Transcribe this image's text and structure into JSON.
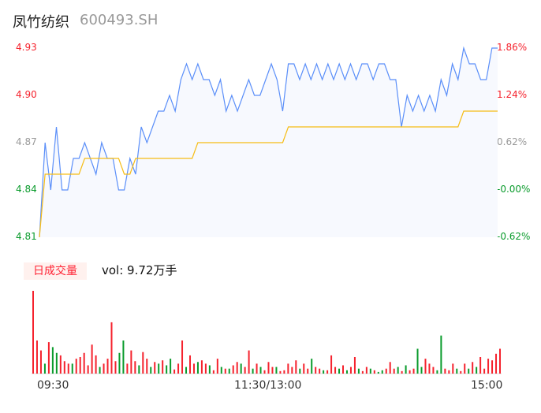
{
  "header": {
    "name": "凤竹纺织",
    "code": "600493.SH"
  },
  "volume_badge": "日成交量",
  "volume_text": "vol: 9.72万手",
  "colors": {
    "price": "#5b8ff9",
    "avg": "#f6bd16",
    "up": "#f5222d",
    "down": "#0a9b2c",
    "area": "#f7f9fe"
  },
  "chart_data": {
    "type": "line",
    "y_ticks_left": [
      "4.93",
      "4.90",
      "4.87",
      "4.84",
      "4.81"
    ],
    "y_ticks_right": [
      "1.86%",
      "1.24%",
      "0.62%",
      "-0.00%",
      "-0.62%"
    ],
    "y_tick_colors": [
      "#f5222d",
      "#f5222d",
      "#999999",
      "#0a9b2c",
      "#0a9b2c"
    ],
    "ylim": [
      4.81,
      4.93
    ],
    "x_ticks": [
      "09:30",
      "11:30/13:00",
      "15:00"
    ],
    "price": [
      4.81,
      4.87,
      4.84,
      4.88,
      4.84,
      4.84,
      4.86,
      4.86,
      4.87,
      4.86,
      4.85,
      4.87,
      4.86,
      4.86,
      4.84,
      4.84,
      4.86,
      4.85,
      4.88,
      4.87,
      4.88,
      4.89,
      4.89,
      4.9,
      4.89,
      4.91,
      4.92,
      4.91,
      4.92,
      4.91,
      4.91,
      4.9,
      4.91,
      4.89,
      4.9,
      4.89,
      4.9,
      4.91,
      4.9,
      4.9,
      4.91,
      4.92,
      4.91,
      4.89,
      4.92,
      4.92,
      4.91,
      4.92,
      4.91,
      4.92,
      4.91,
      4.92,
      4.91,
      4.92,
      4.91,
      4.92,
      4.91,
      4.92,
      4.92,
      4.91,
      4.92,
      4.92,
      4.91,
      4.91,
      4.88,
      4.9,
      4.89,
      4.9,
      4.89,
      4.9,
      4.89,
      4.91,
      4.9,
      4.92,
      4.91,
      4.93,
      4.92,
      4.92,
      4.91,
      4.91,
      4.93,
      4.93
    ],
    "avg": [
      4.81,
      4.85,
      4.85,
      4.85,
      4.85,
      4.85,
      4.85,
      4.85,
      4.86,
      4.86,
      4.86,
      4.86,
      4.86,
      4.86,
      4.86,
      4.85,
      4.85,
      4.86,
      4.86,
      4.86,
      4.86,
      4.86,
      4.86,
      4.86,
      4.86,
      4.86,
      4.86,
      4.86,
      4.87,
      4.87,
      4.87,
      4.87,
      4.87,
      4.87,
      4.87,
      4.87,
      4.87,
      4.87,
      4.87,
      4.87,
      4.87,
      4.87,
      4.87,
      4.87,
      4.88,
      4.88,
      4.88,
      4.88,
      4.88,
      4.88,
      4.88,
      4.88,
      4.88,
      4.88,
      4.88,
      4.88,
      4.88,
      4.88,
      4.88,
      4.88,
      4.88,
      4.88,
      4.88,
      4.88,
      4.88,
      4.88,
      4.88,
      4.88,
      4.88,
      4.88,
      4.88,
      4.88,
      4.88,
      4.88,
      4.88,
      4.89,
      4.89,
      4.89,
      4.89,
      4.89,
      4.89,
      4.89
    ],
    "volume": [
      100,
      40,
      28,
      12,
      38,
      32,
      25,
      22,
      15,
      12,
      12,
      18,
      20,
      25,
      10,
      35,
      22,
      8,
      12,
      18,
      62,
      15,
      25,
      40,
      12,
      28,
      15,
      10,
      26,
      18,
      8,
      14,
      12,
      16,
      10,
      18,
      5,
      12,
      40,
      8,
      22,
      12,
      14,
      16,
      12,
      10,
      4,
      18,
      8,
      6,
      6,
      10,
      14,
      12,
      8,
      28,
      6,
      12,
      8,
      4,
      14,
      8,
      8,
      3,
      4,
      12,
      8,
      16,
      6,
      12,
      6,
      18,
      8,
      6,
      4,
      4,
      22,
      8,
      6,
      10,
      4,
      8,
      20,
      6,
      3,
      8,
      6,
      4,
      2,
      4,
      6,
      14,
      6,
      8,
      3,
      10,
      4,
      6,
      30,
      8,
      18,
      12,
      8,
      4,
      46,
      6,
      4,
      12,
      6,
      3,
      12,
      6,
      14,
      8,
      20,
      6,
      18,
      16,
      24,
      30
    ],
    "volume_up": [
      1,
      1,
      1,
      0,
      1,
      0,
      0,
      1,
      1,
      1,
      0,
      1,
      1,
      1,
      1,
      1,
      1,
      0,
      1,
      1,
      1,
      1,
      0,
      0,
      1,
      1,
      1,
      0,
      1,
      1,
      0,
      1,
      0,
      1,
      0,
      0,
      1,
      1,
      1,
      0,
      1,
      1,
      0,
      1,
      1,
      0,
      1,
      1,
      0,
      1,
      0,
      1,
      1,
      0,
      1,
      1,
      0,
      1,
      0,
      1,
      1,
      1,
      0,
      1,
      1,
      1,
      1,
      1,
      0,
      1,
      1,
      0,
      1,
      1,
      0,
      1,
      1,
      1,
      0,
      1,
      0,
      1,
      1,
      0,
      1,
      1,
      0,
      1,
      0,
      0,
      1,
      1,
      1,
      0,
      1,
      0,
      1,
      1,
      0,
      0,
      1,
      1,
      1,
      0,
      0,
      1,
      1,
      1,
      0,
      1,
      1,
      0,
      1,
      0,
      1,
      1,
      1,
      1,
      1,
      1
    ]
  }
}
